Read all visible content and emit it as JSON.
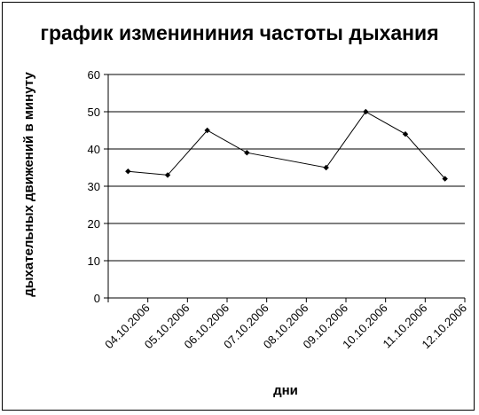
{
  "chart_data": {
    "type": "line",
    "title": "график изменининия частоты дыхания",
    "xlabel": "дни",
    "ylabel": "дыхательных движений в минуту",
    "categories": [
      "04.10.2006",
      "05.10.2006",
      "06.10.2006",
      "07.10.2006",
      "08.10.2006",
      "09.10.2006",
      "10.10.2006",
      "11.10.2006",
      "12.10.2006"
    ],
    "x": [
      "04.10.2006",
      "05.10.2006",
      "06.10.2006",
      "07.10.2006",
      "09.10.2006",
      "10.10.2006",
      "11.10.2006",
      "12.10.2006"
    ],
    "values": [
      34,
      33,
      45,
      39,
      35,
      50,
      44,
      32
    ],
    "ylim": [
      0,
      60
    ],
    "yticks": [
      0,
      10,
      20,
      30,
      40,
      50,
      60
    ],
    "grid": true,
    "legend": "none",
    "line_color": "#000000",
    "grid_color": "#000000"
  }
}
